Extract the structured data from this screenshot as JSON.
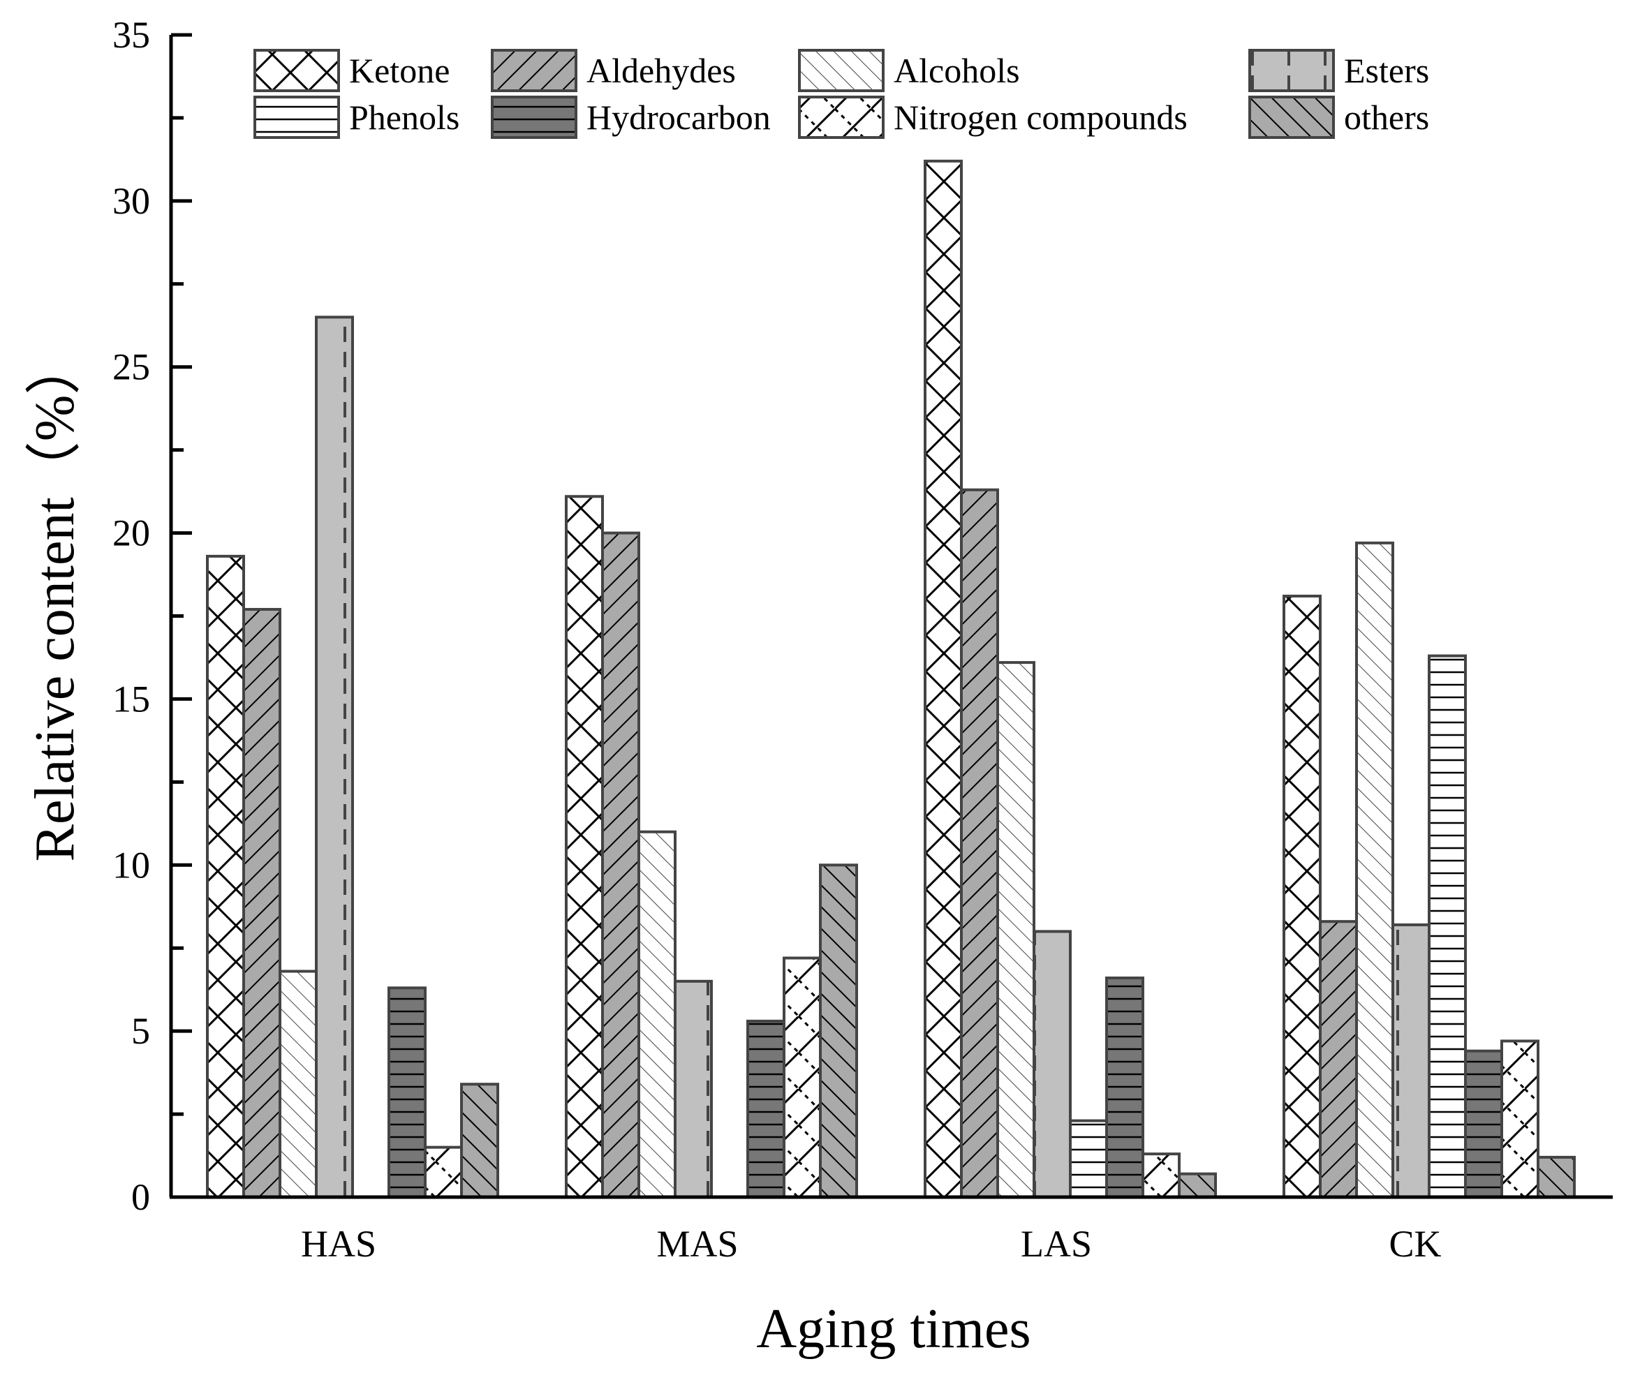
{
  "chart_data": {
    "type": "bar",
    "xlabel": "Aging times",
    "ylabel": "Relative content（%）",
    "ylim": [
      0,
      35
    ],
    "yticks": [
      0,
      5,
      10,
      15,
      20,
      25,
      30,
      35
    ],
    "legend_position": "top",
    "categories": [
      "HAS",
      "MAS",
      "LAS",
      "CK"
    ],
    "series": [
      {
        "name": "Ketone",
        "pattern": "crosshatch",
        "fill": "#ffffff",
        "values": [
          19.3,
          21.1,
          31.2,
          18.1
        ]
      },
      {
        "name": "Aldehydes",
        "pattern": "diagonal-dense",
        "fill": "#aaaaaa",
        "values": [
          17.7,
          20.0,
          21.3,
          8.3
        ]
      },
      {
        "name": "Alcohols",
        "pattern": "backdiagonal-light",
        "fill": "#ffffff",
        "values": [
          6.8,
          11.0,
          16.1,
          19.7
        ]
      },
      {
        "name": "Esters",
        "pattern": "dashed-vertical",
        "fill": "#c0c0c0",
        "values": [
          26.5,
          6.5,
          8.0,
          8.2
        ]
      },
      {
        "name": "Phenols",
        "pattern": "horizontal",
        "fill": "#ffffff",
        "values": [
          0,
          0,
          2.3,
          16.3
        ]
      },
      {
        "name": "Hydrocarbon",
        "pattern": "horizontal-dark",
        "fill": "#777777",
        "values": [
          6.3,
          5.3,
          6.6,
          4.4
        ]
      },
      {
        "name": "Nitrogen compounds",
        "pattern": "zigzag",
        "fill": "#ffffff",
        "values": [
          1.5,
          7.2,
          1.3,
          4.7
        ]
      },
      {
        "name": "others",
        "pattern": "backdiagonal-dense",
        "fill": "#aaaaaa",
        "values": [
          3.4,
          10.0,
          0.7,
          1.2
        ]
      }
    ]
  }
}
